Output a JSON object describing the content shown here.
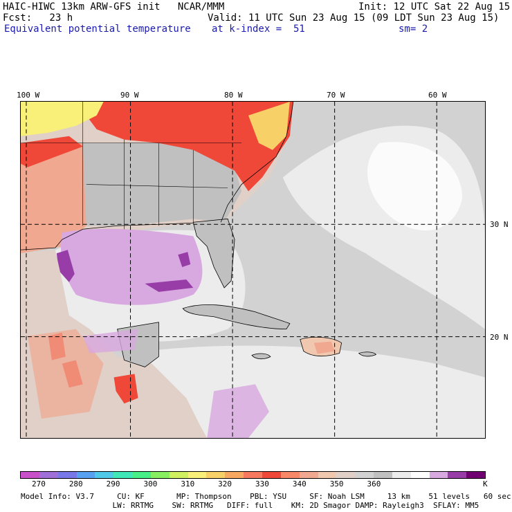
{
  "header": {
    "line1_left": "HAIC-HIWC 13km ARW-GFS init   NCAR/MMM",
    "line1_right": "Init: 12 UTC Sat 22 Aug 15",
    "line2_left": "Fcst:   23 h",
    "line2_right": "Valid: 11 UTC Sun 23 Aug 15 (09 LDT Sun 23 Aug 15)",
    "field": "Equivalent potential temperature",
    "level": "at k-index =  51",
    "smooth": "sm= 2"
  },
  "map": {
    "lon_labels": [
      "100 W",
      "90 W",
      "80 W",
      "70 W",
      "60 W"
    ],
    "lat_labels": [
      "30 N",
      "20 N"
    ],
    "colors": {
      "ocean_gray": "#d2d2d2",
      "ocean_light": "#ececec",
      "warm_pink": "#f0a890",
      "hot_red": "#f04838",
      "yellow": "#f8f078",
      "purple": "#d8a8e0",
      "deep_purple": "#983ca8"
    }
  },
  "colorbar": {
    "colors": [
      "#c850c8",
      "#a070d8",
      "#7878e8",
      "#58a0f0",
      "#50c8e8",
      "#40e8b8",
      "#48f088",
      "#88f060",
      "#d0f060",
      "#f8f078",
      "#f8d068",
      "#f8a860",
      "#f87860",
      "#f04838",
      "#f88868",
      "#f0a890",
      "#f0c8b0",
      "#e0d0c8",
      "#d2d2d2",
      "#c0c0c0",
      "#ececec",
      "#ffffff",
      "#d8a8e0",
      "#983ca8",
      "#700070"
    ],
    "tick_labels": [
      "270",
      "280",
      "290",
      "300",
      "310",
      "320",
      "330",
      "340",
      "350",
      "360"
    ],
    "unit": "K"
  },
  "model_info": {
    "line1": "Model Info: V3.7     CU: KF       MP: Thompson    PBL: YSU     SF: Noah LSM     13 km    51 levels   60 sec",
    "line2": "                    LW: RRTMG    SW: RRTMG   DIFF: full    KM: 2D Smagor DAMP: Rayleigh3  SFLAY: MM5"
  }
}
